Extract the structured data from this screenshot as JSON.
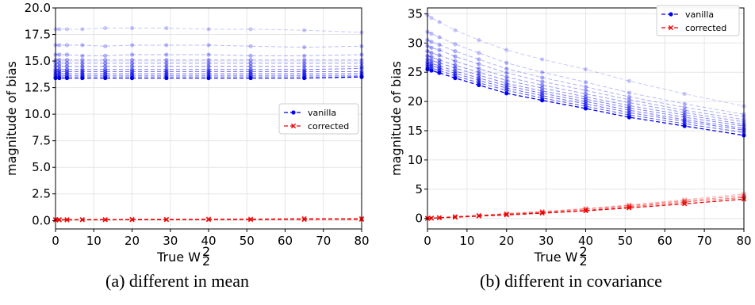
{
  "chart_data": [
    {
      "type": "line",
      "caption": "(a) different in mean",
      "xlabel": "True W",
      "xlabel_sub": "2",
      "xlabel_sup": "2",
      "ylabel": "magnitude of bias",
      "xlim": [
        0,
        80
      ],
      "ylim": [
        -0.8,
        20
      ],
      "xticks": [
        0,
        10,
        20,
        30,
        40,
        50,
        60,
        70,
        80
      ],
      "yticks": [
        0.0,
        2.5,
        5.0,
        7.5,
        10.0,
        12.5,
        15.0,
        17.5,
        20.0
      ],
      "ytick_labels": [
        "0.0",
        "2.5",
        "5.0",
        "7.5",
        "10.0",
        "12.5",
        "15.0",
        "17.5",
        "20.0"
      ],
      "grid": true,
      "legend": {
        "placement": "center-right",
        "entries": [
          "vanilla",
          "corrected"
        ]
      },
      "x": [
        0,
        1,
        3,
        7,
        13,
        20,
        29,
        40,
        51,
        65,
        80
      ],
      "series": [
        {
          "name": "vanilla",
          "color": "#0000ee",
          "values": [
            13.4,
            13.4,
            13.4,
            13.4,
            13.4,
            13.4,
            13.4,
            13.4,
            13.4,
            13.4,
            13.5
          ],
          "faint_lines": [
            [
              13.6,
              13.6,
              13.6,
              13.6,
              13.6,
              13.6,
              13.6,
              13.6,
              13.6,
              13.6,
              13.6
            ],
            [
              13.8,
              13.8,
              13.8,
              13.8,
              13.8,
              13.8,
              13.8,
              13.8,
              13.8,
              13.8,
              13.8
            ],
            [
              14.0,
              14.0,
              14.0,
              14.0,
              14.0,
              14.0,
              14.0,
              14.0,
              14.0,
              14.0,
              14.0
            ],
            [
              14.2,
              14.2,
              14.2,
              14.2,
              14.2,
              14.2,
              14.2,
              14.2,
              14.2,
              14.2,
              14.3
            ],
            [
              14.5,
              14.5,
              14.5,
              14.5,
              14.5,
              14.5,
              14.5,
              14.5,
              14.5,
              14.5,
              14.5
            ],
            [
              14.8,
              14.8,
              14.8,
              14.8,
              14.8,
              14.8,
              14.8,
              14.8,
              14.8,
              14.8,
              14.8
            ],
            [
              15.1,
              15.1,
              15.1,
              15.1,
              15.1,
              15.1,
              15.1,
              15.1,
              15.1,
              15.1,
              15.1
            ],
            [
              15.6,
              15.6,
              15.6,
              15.5,
              15.5,
              15.6,
              15.6,
              15.6,
              15.5,
              15.5,
              15.6
            ],
            [
              16.5,
              16.5,
              16.5,
              16.5,
              16.4,
              16.5,
              16.5,
              16.5,
              16.4,
              16.3,
              16.4
            ],
            [
              18.0,
              18.0,
              18.0,
              18.0,
              18.1,
              18.1,
              18.1,
              18.0,
              18.0,
              17.9,
              17.7
            ]
          ]
        },
        {
          "name": "corrected",
          "color": "#ee0000",
          "values": [
            0.05,
            0.05,
            0.05,
            0.06,
            0.06,
            0.07,
            0.07,
            0.08,
            0.08,
            0.09,
            0.1
          ],
          "faint_lines": [
            [
              0.1,
              0.1,
              0.1,
              0.1,
              0.1,
              0.12,
              0.12,
              0.14,
              0.14,
              0.2,
              0.2
            ]
          ]
        }
      ]
    },
    {
      "type": "line",
      "caption": "(b) different in covariance",
      "xlabel": "True W",
      "xlabel_sub": "2",
      "xlabel_sup": "2",
      "ylabel": "magnitude of bias",
      "xlim": [
        0,
        80
      ],
      "ylim": [
        -1.8,
        36
      ],
      "xticks": [
        0,
        10,
        20,
        30,
        40,
        50,
        60,
        70,
        80
      ],
      "yticks": [
        0,
        5,
        10,
        15,
        20,
        25,
        30,
        35
      ],
      "ytick_labels": [
        "0",
        "5",
        "10",
        "15",
        "20",
        "25",
        "30",
        "35"
      ],
      "grid": true,
      "legend": {
        "placement": "top-right",
        "entries": [
          "vanilla",
          "corrected"
        ]
      },
      "x": [
        0,
        1,
        3,
        7,
        13,
        20,
        29,
        40,
        51,
        65,
        80
      ],
      "series": [
        {
          "name": "vanilla",
          "color": "#0000ee",
          "values": [
            25.5,
            25.3,
            24.9,
            24.0,
            22.8,
            21.4,
            20.2,
            18.8,
            17.3,
            15.8,
            14.2
          ],
          "faint_lines": [
            [
              25.9,
              25.7,
              25.3,
              24.4,
              23.2,
              21.9,
              20.6,
              19.2,
              17.7,
              16.2,
              14.7
            ],
            [
              26.3,
              26.1,
              25.7,
              24.8,
              23.6,
              22.3,
              21.0,
              19.6,
              18.1,
              16.6,
              15.1
            ],
            [
              26.7,
              26.5,
              26.1,
              25.2,
              24.0,
              22.7,
              21.4,
              20.0,
              18.5,
              16.9,
              15.4
            ],
            [
              27.2,
              27.0,
              26.6,
              25.7,
              24.5,
              23.1,
              21.8,
              20.4,
              18.9,
              17.3,
              15.8
            ],
            [
              27.8,
              27.6,
              27.1,
              26.2,
              25.0,
              23.6,
              22.3,
              20.8,
              19.3,
              17.7,
              16.1
            ],
            [
              28.6,
              28.3,
              27.9,
              26.9,
              25.6,
              24.2,
              22.8,
              21.3,
              19.8,
              18.1,
              16.5
            ],
            [
              29.5,
              29.2,
              28.8,
              27.7,
              26.4,
              24.9,
              23.4,
              21.9,
              20.3,
              18.5,
              16.9
            ],
            [
              30.5,
              30.2,
              29.7,
              28.6,
              27.2,
              25.6,
              24.1,
              22.5,
              20.8,
              19.0,
              17.4
            ],
            [
              31.9,
              31.6,
              31.0,
              29.8,
              28.3,
              26.6,
              25.0,
              23.3,
              21.5,
              19.6,
              17.8
            ],
            [
              34.8,
              34.3,
              33.6,
              32.2,
              30.5,
              28.8,
              27.2,
              25.5,
              23.5,
              21.3,
              19.2
            ]
          ]
        },
        {
          "name": "corrected",
          "color": "#ee0000",
          "values": [
            0,
            0.05,
            0.1,
            0.2,
            0.4,
            0.6,
            0.9,
            1.3,
            1.8,
            2.5,
            3.3
          ],
          "faint_lines": [
            [
              0,
              0.05,
              0.12,
              0.25,
              0.45,
              0.7,
              1.0,
              1.4,
              2.0,
              2.8,
              3.6
            ],
            [
              0,
              0.06,
              0.14,
              0.3,
              0.5,
              0.8,
              1.1,
              1.6,
              2.2,
              3.0,
              3.9
            ],
            [
              0,
              0.07,
              0.16,
              0.35,
              0.55,
              0.85,
              1.2,
              1.7,
              2.3,
              3.2,
              4.2
            ]
          ]
        }
      ]
    }
  ]
}
